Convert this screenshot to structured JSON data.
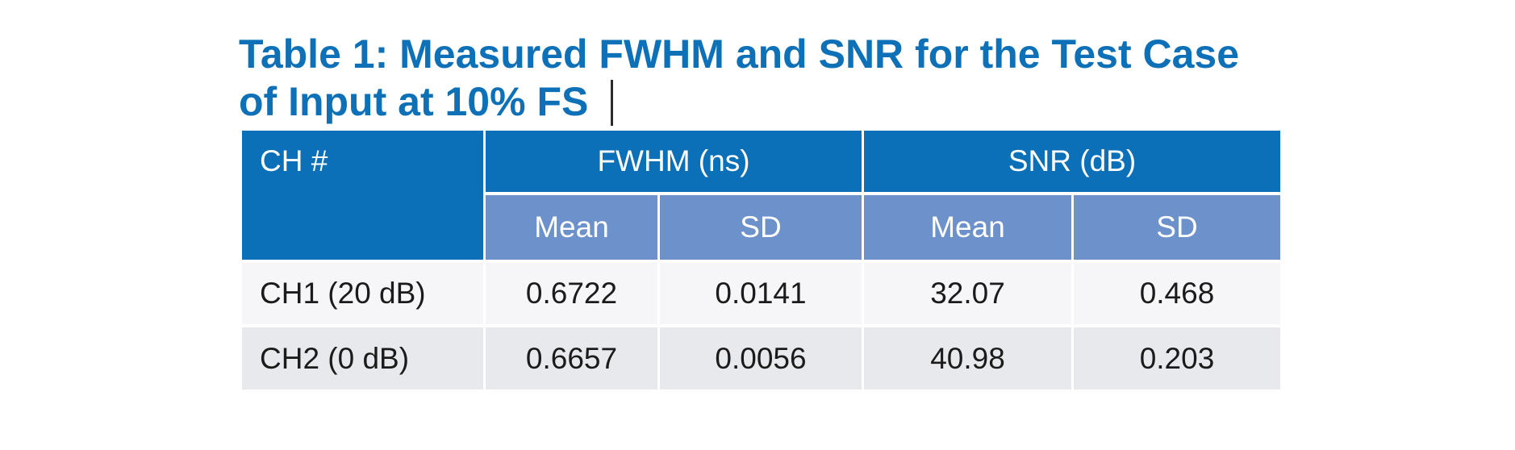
{
  "title": {
    "text": "Table 1: Measured FWHM and SNR for the Test Case\nof  Input at 10% FS"
  },
  "table": {
    "col_header_main": [
      "CH #",
      "FWHM (ns)",
      "SNR (dB)"
    ],
    "sub_headers": [
      "Mean",
      "SD",
      "Mean",
      "SD"
    ],
    "rows": [
      {
        "label": "CH1 (20 dB)",
        "values": [
          "0.6722",
          "0.0141",
          "32.07",
          "0.468"
        ]
      },
      {
        "label": "CH2 (0 dB)",
        "values": [
          "0.6657",
          "0.0056",
          "40.98",
          "0.203"
        ]
      }
    ]
  },
  "chart_data": {
    "type": "table",
    "title": "Table 1: Measured FWHM and SNR for the Test Case of Input at 10% FS",
    "column_groups": [
      "CH #",
      "FWHM (ns)",
      "SNR (dB)"
    ],
    "columns": [
      "CH #",
      "FWHM (ns) Mean",
      "FWHM (ns) SD",
      "SNR (dB) Mean",
      "SNR (dB) SD"
    ],
    "rows": [
      [
        "CH1 (20 dB)",
        0.6722,
        0.0141,
        32.07,
        0.468
      ],
      [
        "CH2 (0 dB)",
        0.6657,
        0.0056,
        40.98,
        0.203
      ]
    ]
  },
  "colors": {
    "title_blue": "#0E71B8",
    "header_dark_blue": "#0C70B8",
    "header_light_blue": "#6D92CB",
    "row_odd_bg": "#F6F6F8",
    "row_even_bg": "#E8E9ED",
    "header_text": "#FFFFFF",
    "body_text": "#1B1B1B",
    "canvas_bg": "#FFFFFF",
    "caret_color": "#2B2B2B"
  }
}
